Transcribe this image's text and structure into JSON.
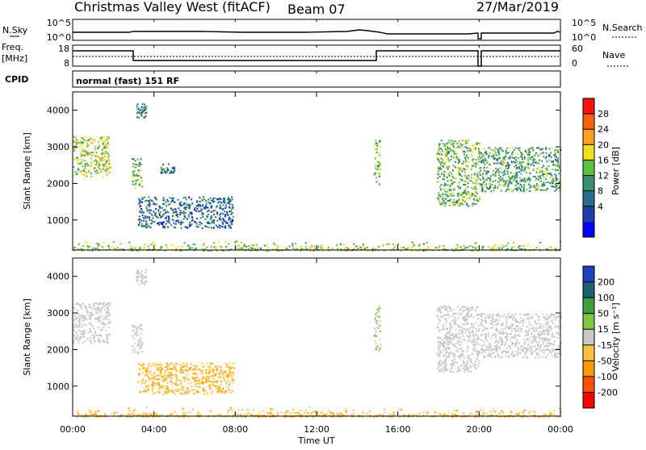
{
  "header": {
    "station": "Christmas Valley West (fitACF)",
    "beam": "Beam 07",
    "date": "27/Mar/2019"
  },
  "noise_panel": {
    "left_label": "N.Sky",
    "right_label": "N.Search",
    "left_ticks": [
      "10^5",
      "10^0"
    ],
    "right_ticks": [
      "10^5",
      "10^0"
    ]
  },
  "freq_panel": {
    "left_label_1": "Freq.",
    "left_label_2": "[MHz]",
    "right_label": "Nave",
    "left_ticks": [
      "18",
      "8"
    ],
    "right_ticks": [
      "60",
      "0"
    ]
  },
  "cpid_panel": {
    "label": "CPID",
    "mode": "normal (fast) 151 RF"
  },
  "axes": {
    "ylabel": "Slant Range [km]",
    "xlabel": "Time UT",
    "y_ticks": [
      "4000",
      "3000",
      "2000",
      "1000"
    ],
    "x_ticks": [
      "00:00",
      "04:00",
      "08:00",
      "12:00",
      "16:00",
      "20:00",
      "00:00"
    ]
  },
  "colorbars": {
    "power": {
      "label": "Power [dB]",
      "ticks": [
        "28",
        "24",
        "20",
        "16",
        "12",
        "8",
        "4"
      ],
      "colors": [
        "#0000ff",
        "#1f3fa8",
        "#2a6e8a",
        "#3c8f6a",
        "#60c040",
        "#f0e020",
        "#ffa020",
        "#ff6010",
        "#ff1010"
      ]
    },
    "velocity": {
      "label": "Velocity [m s⁻¹]",
      "ticks": [
        "200",
        "100",
        "50",
        "15",
        "-15",
        "-50",
        "-100",
        "-200"
      ],
      "colors": [
        "#ff0000",
        "#ff5000",
        "#ff9a00",
        "#ffc040",
        "#c8c8c8",
        "#80c840",
        "#40a040",
        "#206070",
        "#2040c0"
      ]
    }
  },
  "chart_data": [
    {
      "type": "heatmap",
      "title": "Power [dB]",
      "xlabel": "Time UT",
      "ylabel": "Slant Range [km]",
      "xlim": [
        "00:00",
        "24:00"
      ],
      "ylim": [
        180,
        4500
      ],
      "clim": [
        0,
        30
      ],
      "regions": [
        {
          "t": [
            0.0,
            1.8
          ],
          "r": [
            2200,
            3300
          ],
          "level": 17
        },
        {
          "t": [
            2.9,
            3.4
          ],
          "r": [
            1900,
            2700
          ],
          "level": 14
        },
        {
          "t": [
            3.1,
            3.6
          ],
          "r": [
            3800,
            4200
          ],
          "level": 8
        },
        {
          "t": [
            4.3,
            5.0
          ],
          "r": [
            2300,
            2600
          ],
          "level": 10
        },
        {
          "t": [
            3.2,
            7.9
          ],
          "r": [
            800,
            1650
          ],
          "level": 7
        },
        {
          "t": [
            14.8,
            15.1
          ],
          "r": [
            2000,
            3200
          ],
          "level": 14
        },
        {
          "t": [
            17.9,
            20.0
          ],
          "r": [
            1400,
            3200
          ],
          "level": 14
        },
        {
          "t": [
            20.0,
            24.0
          ],
          "r": [
            1800,
            3000
          ],
          "level": 12
        },
        {
          "t": [
            0.0,
            24.0
          ],
          "r": [
            180,
            450
          ],
          "level": 16
        }
      ]
    },
    {
      "type": "heatmap",
      "title": "Velocity [m s⁻¹]",
      "xlabel": "Time UT",
      "ylabel": "Slant Range [km]",
      "xlim": [
        "00:00",
        "24:00"
      ],
      "ylim": [
        180,
        4500
      ],
      "clim": [
        -200,
        200
      ],
      "regions": [
        {
          "t": [
            0.0,
            1.8
          ],
          "r": [
            2200,
            3300
          ],
          "value": 0
        },
        {
          "t": [
            2.9,
            3.4
          ],
          "r": [
            1900,
            2700
          ],
          "value": 0
        },
        {
          "t": [
            3.1,
            3.6
          ],
          "r": [
            3800,
            4200
          ],
          "value": 0
        },
        {
          "t": [
            3.2,
            7.9
          ],
          "r": [
            800,
            1650
          ],
          "value": -60
        },
        {
          "t": [
            14.8,
            15.1
          ],
          "r": [
            2000,
            3200
          ],
          "value": 20
        },
        {
          "t": [
            17.9,
            20.0
          ],
          "r": [
            1400,
            3200
          ],
          "value": 0
        },
        {
          "t": [
            20.0,
            24.0
          ],
          "r": [
            1800,
            3000
          ],
          "value": 0
        },
        {
          "t": [
            0.0,
            24.0
          ],
          "r": [
            180,
            450
          ],
          "value": -55
        }
      ]
    }
  ]
}
